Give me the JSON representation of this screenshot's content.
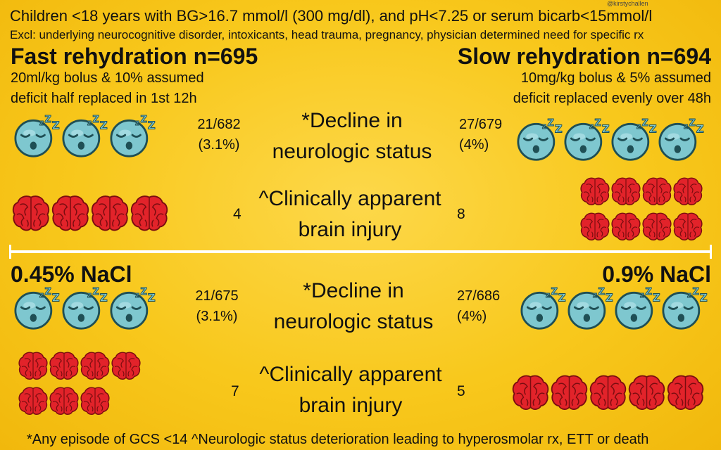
{
  "header": {
    "criteria": "Children <18 years with BG>16.7 mmol/l (300 mg/dl), and pH<7.25 or serum bicarb<15mmol/l",
    "exclusions": "Excl: underlying neurocognitive disorder, intoxicants, head trauma, pregnancy, physician determined need for specific rx",
    "handle": "@kirstychallen"
  },
  "colors": {
    "background": "#f8c81c",
    "brain": "#e2232a",
    "face": "#7ec7cf",
    "divider": "#ffffff"
  },
  "icons": {
    "sleep": "sleeping-face-icon",
    "brain": "brain-icon"
  },
  "top": {
    "left_arm": {
      "title": "Fast rehydration n=695",
      "desc1": "20ml/kg bolus & 10% assumed",
      "desc2": "deficit half replaced in 1st 12h"
    },
    "right_arm": {
      "title": "Slow rehydration n=694",
      "desc1": "10mg/kg bolus & 5% assumed",
      "desc2": "deficit replaced evenly over 48h"
    },
    "decline": {
      "label1": "*Decline in",
      "label2": "neurologic status",
      "left_fraction": "21/682",
      "left_percent": "(3.1%)",
      "right_fraction": "27/679",
      "right_percent": "(4%)"
    },
    "injury": {
      "label1": "^Clinically apparent",
      "label2": "brain injury",
      "left_count": "4",
      "right_count": "8"
    }
  },
  "bottom": {
    "left_arm": {
      "title": "0.45% NaCl"
    },
    "right_arm": {
      "title": "0.9% NaCl"
    },
    "decline": {
      "label1": "*Decline in",
      "label2": "neurologic status",
      "left_fraction": "21/675",
      "left_percent": "(3.1%)",
      "right_fraction": "27/686",
      "right_percent": "(4%)"
    },
    "injury": {
      "label1": "^Clinically apparent",
      "label2": "brain injury",
      "left_count": "7",
      "right_count": "5"
    }
  },
  "footer": {
    "note": "*Any episode of GCS <14 ^Neurologic status deterioration leading to hyperosmolar rx, ETT or death"
  }
}
